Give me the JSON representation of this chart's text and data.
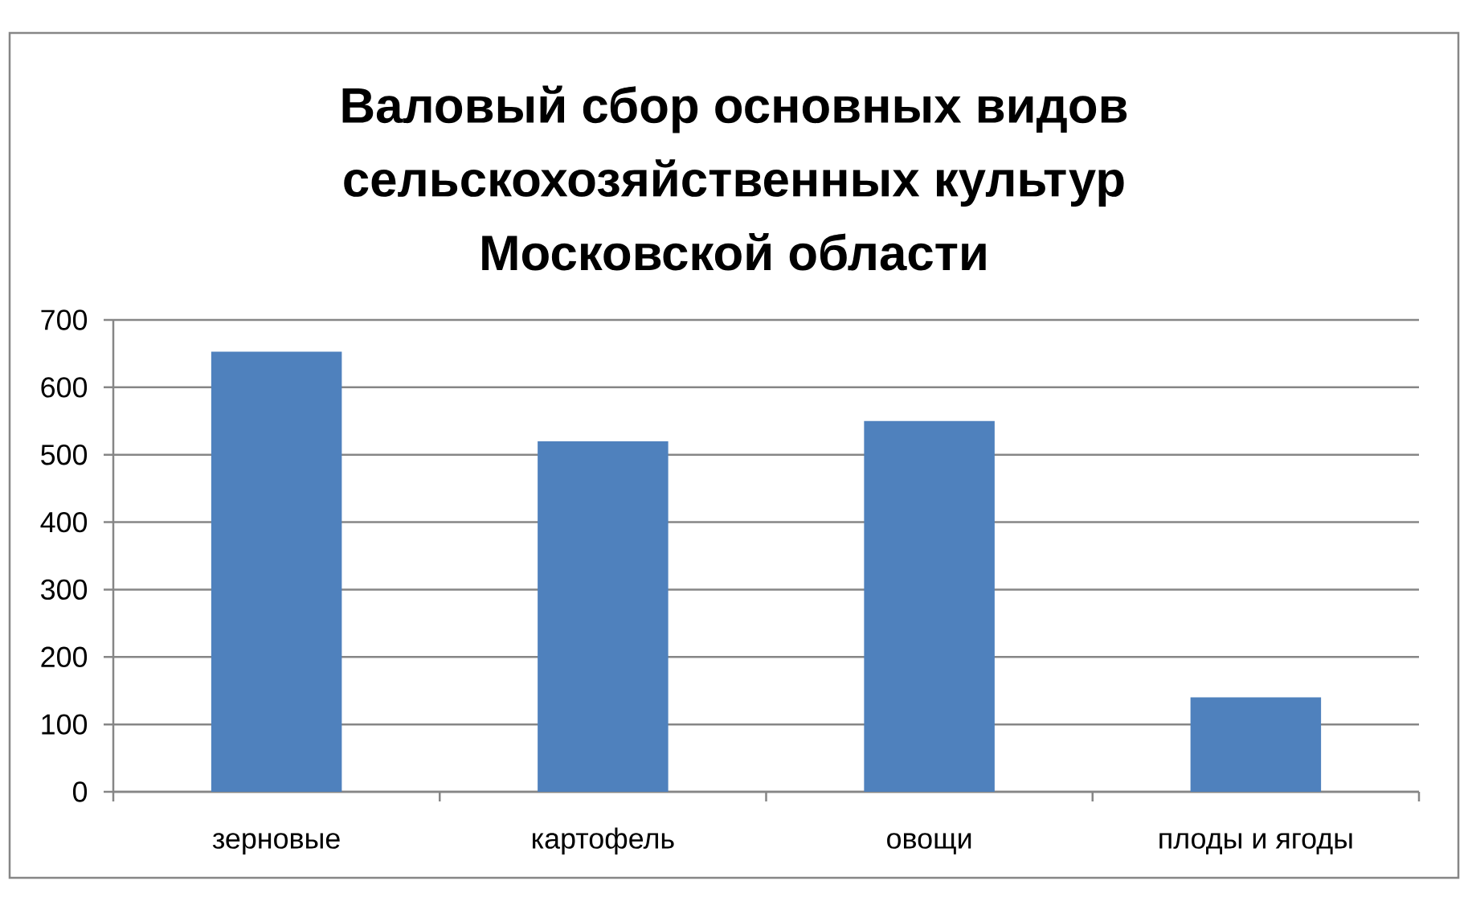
{
  "chart_data": {
    "type": "bar",
    "title": "Валовый сбор основных видов сельскохозяйственных культур Московской области",
    "categories": [
      "зерновые",
      "картофель",
      "овощи",
      "плоды и ягоды"
    ],
    "values": [
      653,
      520,
      550,
      140
    ],
    "color": "#4f81bd",
    "ylim": [
      0,
      700
    ],
    "yticks": [
      0,
      100,
      200,
      300,
      400,
      500,
      600,
      700
    ],
    "grid": "y"
  }
}
